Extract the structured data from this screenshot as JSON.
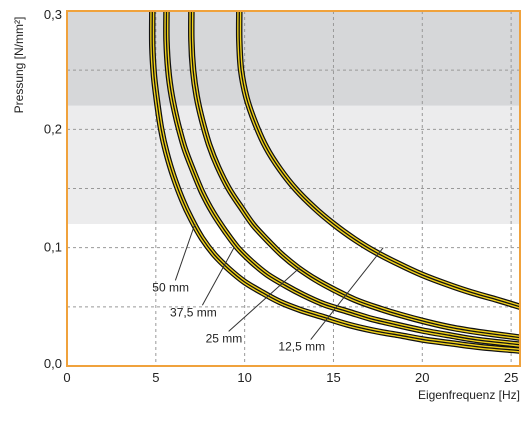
{
  "chart_data": {
    "type": "line",
    "title": "",
    "xlabel": "Eigenfrequenz [Hz]",
    "ylabel": "Pressung [N/mm²]",
    "xlim": [
      0,
      25.5
    ],
    "ylim": [
      0,
      0.3
    ],
    "x_ticks": [
      0,
      5,
      10,
      15,
      20,
      25
    ],
    "x_tick_labels": [
      "0",
      "5",
      "10",
      "15",
      "20",
      "25"
    ],
    "y_ticks": [
      0,
      0.1,
      0.2,
      0.3
    ],
    "y_tick_labels": [
      "0,0",
      "0,1",
      "0,2",
      "0,3"
    ],
    "grid": true,
    "colors": {
      "frame": "#f0a23c",
      "curve_fill": "#f2d21b",
      "curve_outline": "#111111",
      "grid": "#999999",
      "band_dark": "#d6d7d9",
      "band_light": "#ececed"
    },
    "bands": [
      {
        "y_from": 0.12,
        "y_to": 0.22,
        "shade": "light"
      },
      {
        "y_from": 0.22,
        "y_to": 0.3,
        "shade": "dark"
      }
    ],
    "series": [
      {
        "name": "50 mm",
        "x": [
          4.8,
          4.8,
          4.9,
          5.1,
          5.3,
          5.6,
          6.0,
          6.5,
          7.0,
          7.6,
          8.3,
          9.1,
          10.0,
          11.0,
          12.0,
          13.2,
          14.5,
          15.8,
          17.2,
          18.7,
          20.2,
          21.7,
          23.3,
          25.5
        ],
        "y": [
          0.3,
          0.27,
          0.245,
          0.22,
          0.2,
          0.18,
          0.16,
          0.14,
          0.124,
          0.108,
          0.094,
          0.082,
          0.071,
          0.062,
          0.054,
          0.047,
          0.041,
          0.035,
          0.03,
          0.026,
          0.022,
          0.019,
          0.016,
          0.013
        ]
      },
      {
        "name": "37,5 mm",
        "x": [
          5.6,
          5.6,
          5.7,
          5.9,
          6.2,
          6.6,
          7.1,
          7.6,
          8.2,
          8.9,
          9.6,
          10.4,
          11.3,
          12.3,
          13.3,
          14.5,
          15.8,
          17.1,
          18.5,
          20.0,
          21.5,
          23.1,
          25.5
        ],
        "y": [
          0.3,
          0.275,
          0.25,
          0.228,
          0.207,
          0.185,
          0.165,
          0.147,
          0.13,
          0.114,
          0.1,
          0.088,
          0.077,
          0.068,
          0.06,
          0.052,
          0.046,
          0.04,
          0.035,
          0.03,
          0.026,
          0.022,
          0.018
        ]
      },
      {
        "name": "25 mm",
        "x": [
          7.0,
          7.0,
          7.1,
          7.3,
          7.6,
          8.0,
          8.5,
          9.1,
          9.8,
          10.5,
          11.3,
          12.1,
          13.0,
          14.0,
          15.1,
          16.2,
          17.5,
          18.8,
          20.3,
          21.8,
          23.5,
          25.5
        ],
        "y": [
          0.3,
          0.275,
          0.25,
          0.228,
          0.208,
          0.187,
          0.168,
          0.15,
          0.134,
          0.119,
          0.106,
          0.094,
          0.083,
          0.073,
          0.064,
          0.056,
          0.049,
          0.043,
          0.037,
          0.032,
          0.028,
          0.024
        ]
      },
      {
        "name": "12,5 mm",
        "x": [
          9.7,
          9.7,
          9.8,
          10.1,
          10.6,
          11.2,
          12.0,
          12.9,
          13.9,
          15.0,
          16.2,
          17.4,
          18.7,
          20.0,
          21.4,
          22.8,
          24.2,
          25.5
        ],
        "y": [
          0.3,
          0.275,
          0.25,
          0.227,
          0.205,
          0.185,
          0.166,
          0.149,
          0.134,
          0.12,
          0.107,
          0.096,
          0.086,
          0.077,
          0.069,
          0.062,
          0.056,
          0.05
        ]
      }
    ],
    "annotations": [
      {
        "text": "50 mm",
        "label_at": [
          4.8,
          0.063
        ],
        "line_to": [
          7.2,
          0.12
        ]
      },
      {
        "text": "37,5 mm",
        "label_at": [
          5.8,
          0.042
        ],
        "line_to": [
          9.4,
          0.1
        ]
      },
      {
        "text": "25 mm",
        "label_at": [
          7.8,
          0.02
        ],
        "line_to": [
          13.1,
          0.083
        ]
      },
      {
        "text": "12,5 mm",
        "label_at": [
          11.9,
          0.013
        ],
        "line_to": [
          17.8,
          0.1
        ]
      }
    ]
  }
}
